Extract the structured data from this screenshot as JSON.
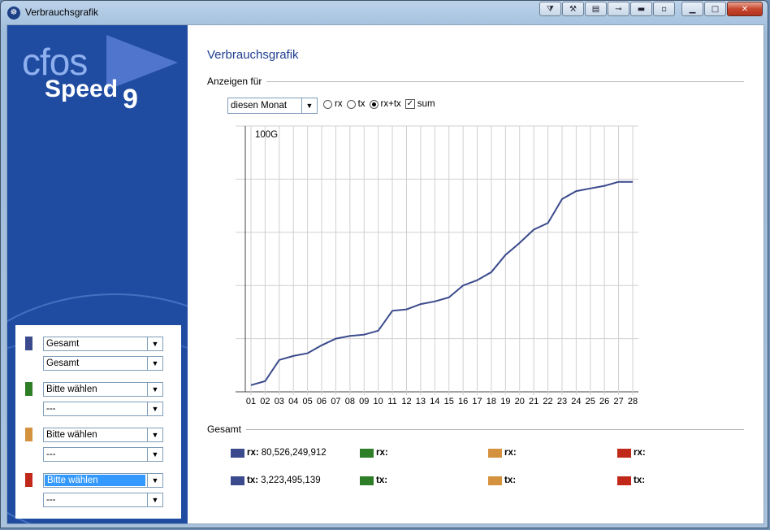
{
  "window": {
    "title": "Verbrauchsgrafik",
    "app_icon": "cfos-app-icon"
  },
  "titlebar_buttons": [
    "filter-icon",
    "tools-icon",
    "monitor-icon",
    "plug-icon",
    "minus-icon",
    "restore-icon",
    "minimize-icon",
    "maximize-icon",
    "close-icon"
  ],
  "logo": {
    "line1": "cfos",
    "line2": "Speed",
    "version": "9"
  },
  "page": {
    "heading": "Verbrauchsgrafik",
    "show_for_label": "Anzeigen für",
    "period": "diesen Monat",
    "options": [
      {
        "label": "rx",
        "type": "radio",
        "checked": false
      },
      {
        "label": "tx",
        "type": "radio",
        "checked": false
      },
      {
        "label": "rx+tx",
        "type": "radio",
        "checked": true
      },
      {
        "label": "sum",
        "type": "checkbox",
        "checked": true
      }
    ],
    "total_label": "Gesamt"
  },
  "selectors": [
    {
      "color": "#3a4a8c",
      "first": "Gesamt",
      "second": "Gesamt",
      "highlighted": false
    },
    {
      "color": "#2e7d27",
      "first": "Bitte wählen",
      "second": "---",
      "highlighted": false
    },
    {
      "color": "#d4923f",
      "first": "Bitte wählen",
      "second": "---",
      "highlighted": false
    },
    {
      "color": "#c0281a",
      "first": "Bitte wählen",
      "second": "---",
      "highlighted": true
    }
  ],
  "legend": [
    {
      "color": "#3a4a8c",
      "rx_label": "rx:",
      "rx_value": "80,526,249,912",
      "tx_label": "tx:",
      "tx_value": "3,223,495,139"
    },
    {
      "color": "#2e7d27",
      "rx_label": "rx:",
      "rx_value": "",
      "tx_label": "tx:",
      "tx_value": ""
    },
    {
      "color": "#d4923f",
      "rx_label": "rx:",
      "rx_value": "",
      "tx_label": "tx:",
      "tx_value": ""
    },
    {
      "color": "#c0281a",
      "rx_label": "rx:",
      "rx_value": "",
      "tx_label": "tx:",
      "tx_value": ""
    }
  ],
  "chart_data": {
    "type": "line",
    "title": "",
    "xlabel": "",
    "ylabel": "",
    "y_top_label": "100G",
    "ylim": [
      0,
      100
    ],
    "grid": true,
    "categories": [
      "01",
      "02",
      "03",
      "04",
      "05",
      "06",
      "07",
      "08",
      "09",
      "10",
      "11",
      "12",
      "13",
      "14",
      "15",
      "16",
      "17",
      "18",
      "19",
      "20",
      "21",
      "22",
      "23",
      "24",
      "25",
      "26",
      "27",
      "28"
    ],
    "series": [
      {
        "color": "#3a4a8c",
        "values": [
          2.5,
          4,
          12,
          13.5,
          14.5,
          17.5,
          20,
          21,
          21.5,
          23,
          30.5,
          31,
          33,
          34,
          35.5,
          40,
          42,
          45,
          51.5,
          56,
          61,
          63.5,
          72.5,
          75.5,
          76.5,
          77.5,
          79,
          79
        ]
      }
    ]
  }
}
